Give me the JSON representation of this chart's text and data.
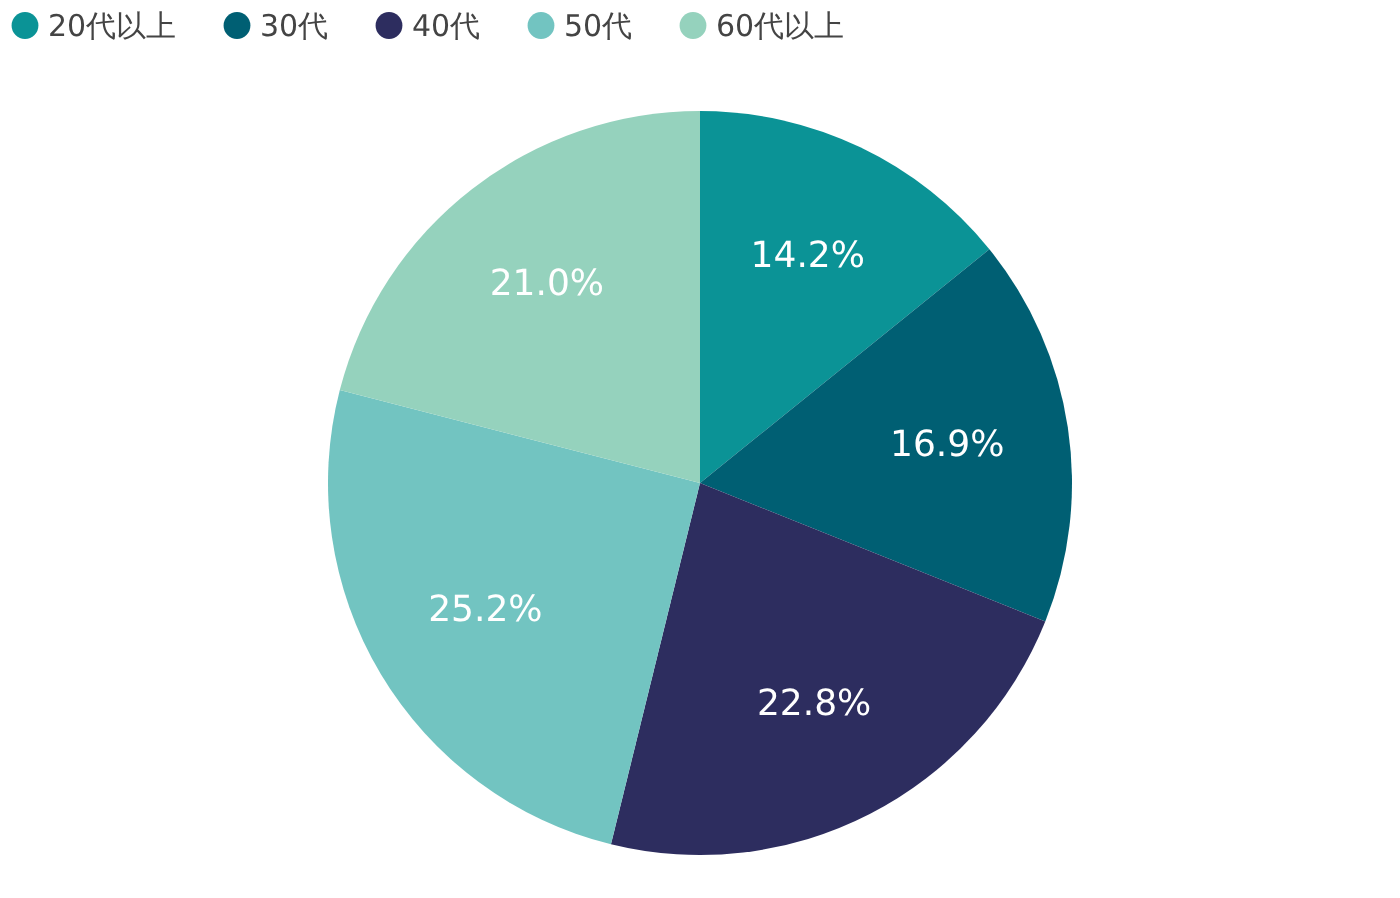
{
  "chart_data": {
    "type": "pie",
    "categories": [
      "20代以上",
      "30代",
      "40代",
      "50代",
      "60代以上"
    ],
    "values": [
      14.2,
      16.9,
      22.8,
      25.2,
      21.0
    ],
    "colors": [
      "#0b9396",
      "#005f73",
      "#2d2d5f",
      "#72c4c1",
      "#95d2bd"
    ],
    "value_labels": [
      "14.2%",
      "16.9%",
      "22.8%",
      "25.2%",
      "21.0%"
    ],
    "legend": "top"
  }
}
